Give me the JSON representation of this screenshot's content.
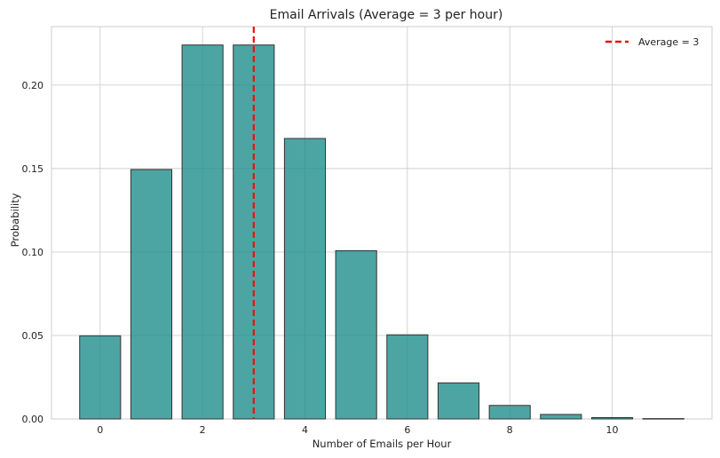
{
  "chart_data": {
    "type": "bar",
    "title": "Email Arrivals (Average = 3 per hour)",
    "xlabel": "Number of Emails per Hour",
    "ylabel": "Probability",
    "x": [
      0,
      1,
      2,
      3,
      4,
      5,
      6,
      7,
      8,
      9,
      10,
      11
    ],
    "values": [
      0.0498,
      0.1494,
      0.224,
      0.224,
      0.168,
      0.1008,
      0.0504,
      0.0216,
      0.0081,
      0.0027,
      0.0008,
      0.0002
    ],
    "xlim": [
      -0.95,
      11.95
    ],
    "ylim": [
      0,
      0.235
    ],
    "xticks": [
      0,
      2,
      4,
      6,
      8,
      10
    ],
    "yticks": [
      0.0,
      0.05,
      0.1,
      0.15,
      0.2
    ],
    "xtick_labels": [
      "0",
      "2",
      "4",
      "6",
      "8",
      "10"
    ],
    "ytick_labels": [
      "0.00",
      "0.05",
      "0.10",
      "0.15",
      "0.20"
    ],
    "bar_color": "#1f8f8c",
    "bar_edge_color": "#333333",
    "bar_opacity": 0.8,
    "average_line": {
      "x": 3,
      "label": "Average = 3",
      "color": "#e8120c",
      "style": "dashed"
    },
    "grid": true,
    "legend_position": "top-right"
  }
}
